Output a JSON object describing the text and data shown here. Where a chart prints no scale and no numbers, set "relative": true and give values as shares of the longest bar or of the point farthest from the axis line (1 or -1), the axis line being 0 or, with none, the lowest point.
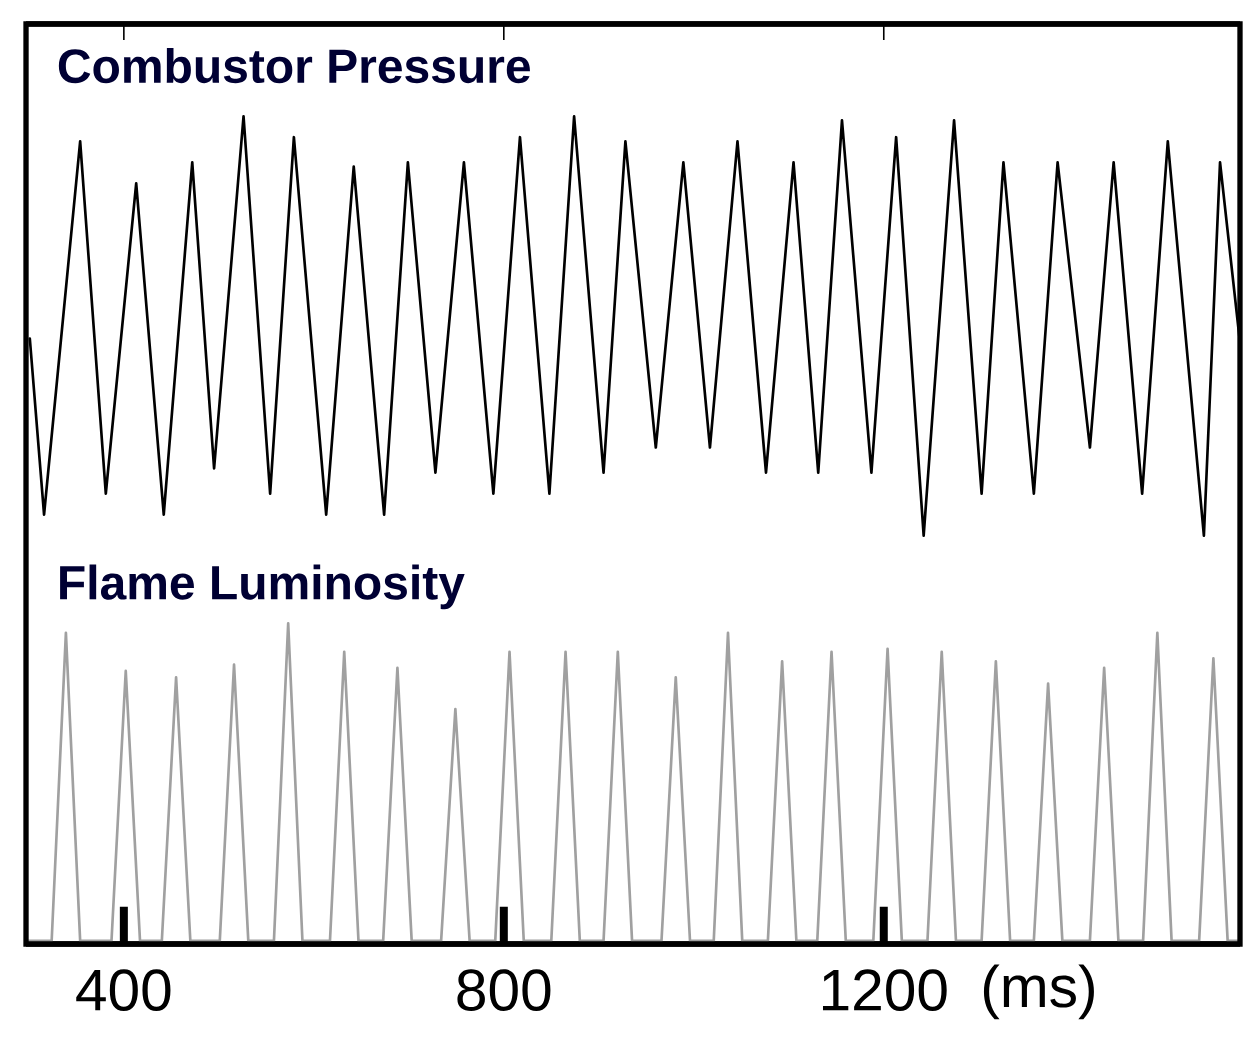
{
  "chart_data": [
    {
      "type": "line",
      "title": "Combustor Pressure",
      "relative": true,
      "color": "#000000",
      "xlim": [
        297,
        1575
      ],
      "tick_labels": false,
      "xticks": [
        {
          "value": 400,
          "label": null
        },
        {
          "value": 800,
          "label": null
        },
        {
          "value": 1200,
          "label": null
        }
      ],
      "x": [
        301,
        316,
        354,
        381,
        413,
        442,
        472,
        495,
        526,
        554,
        579,
        613,
        642,
        674,
        699,
        728,
        758,
        789,
        817,
        848,
        874,
        905,
        928,
        960,
        989,
        1017,
        1046,
        1076,
        1105,
        1131,
        1156,
        1187,
        1213,
        1242,
        1274,
        1303,
        1326,
        1358,
        1383,
        1417,
        1442,
        1472,
        1499,
        1537,
        1554,
        1575
      ],
      "values": [
        0.47,
        0.05,
        0.94,
        0.1,
        0.84,
        0.05,
        0.89,
        0.16,
        1.0,
        0.1,
        0.95,
        0.05,
        0.88,
        0.05,
        0.89,
        0.15,
        0.89,
        0.1,
        0.95,
        0.1,
        1.0,
        0.15,
        0.94,
        0.21,
        0.89,
        0.21,
        0.94,
        0.15,
        0.89,
        0.15,
        0.99,
        0.15,
        0.95,
        0.0,
        0.99,
        0.1,
        0.89,
        0.1,
        0.89,
        0.21,
        0.89,
        0.1,
        0.94,
        0.0,
        0.89,
        0.46
      ]
    },
    {
      "type": "line",
      "title": "Flame Luminosity",
      "relative": true,
      "color": "#a0a0a0",
      "xlim": [
        297,
        1575
      ],
      "tick_labels": "x",
      "xlabel": "(ms)",
      "xticks": [
        400,
        800,
        1200
      ],
      "x": [
        297,
        324,
        339,
        354,
        387,
        402,
        417,
        440,
        455,
        470,
        501,
        516,
        531,
        558,
        573,
        588,
        617,
        632,
        647,
        673,
        688,
        703,
        734,
        749,
        764,
        791,
        806,
        821,
        850,
        865,
        880,
        905,
        920,
        935,
        966,
        981,
        996,
        1021,
        1036,
        1051,
        1078,
        1093,
        1108,
        1130,
        1145,
        1160,
        1189,
        1204,
        1219,
        1246,
        1261,
        1276,
        1303,
        1318,
        1333,
        1358,
        1373,
        1388,
        1417,
        1432,
        1447,
        1473,
        1488,
        1503,
        1532,
        1547,
        1562,
        1575
      ],
      "values": [
        0,
        0,
        0.97,
        0,
        0,
        0.85,
        0,
        0,
        0.83,
        0,
        0,
        0.87,
        0,
        0,
        1.0,
        0,
        0,
        0.91,
        0,
        0,
        0.86,
        0,
        0,
        0.73,
        0,
        0,
        0.91,
        0,
        0,
        0.91,
        0,
        0,
        0.91,
        0,
        0,
        0.83,
        0,
        0,
        0.97,
        0,
        0,
        0.88,
        0,
        0,
        0.91,
        0,
        0,
        0.92,
        0,
        0,
        0.91,
        0,
        0,
        0.88,
        0,
        0,
        0.81,
        0,
        0,
        0.86,
        0,
        0,
        0.97,
        0,
        0,
        0.89,
        0,
        0
      ]
    }
  ]
}
